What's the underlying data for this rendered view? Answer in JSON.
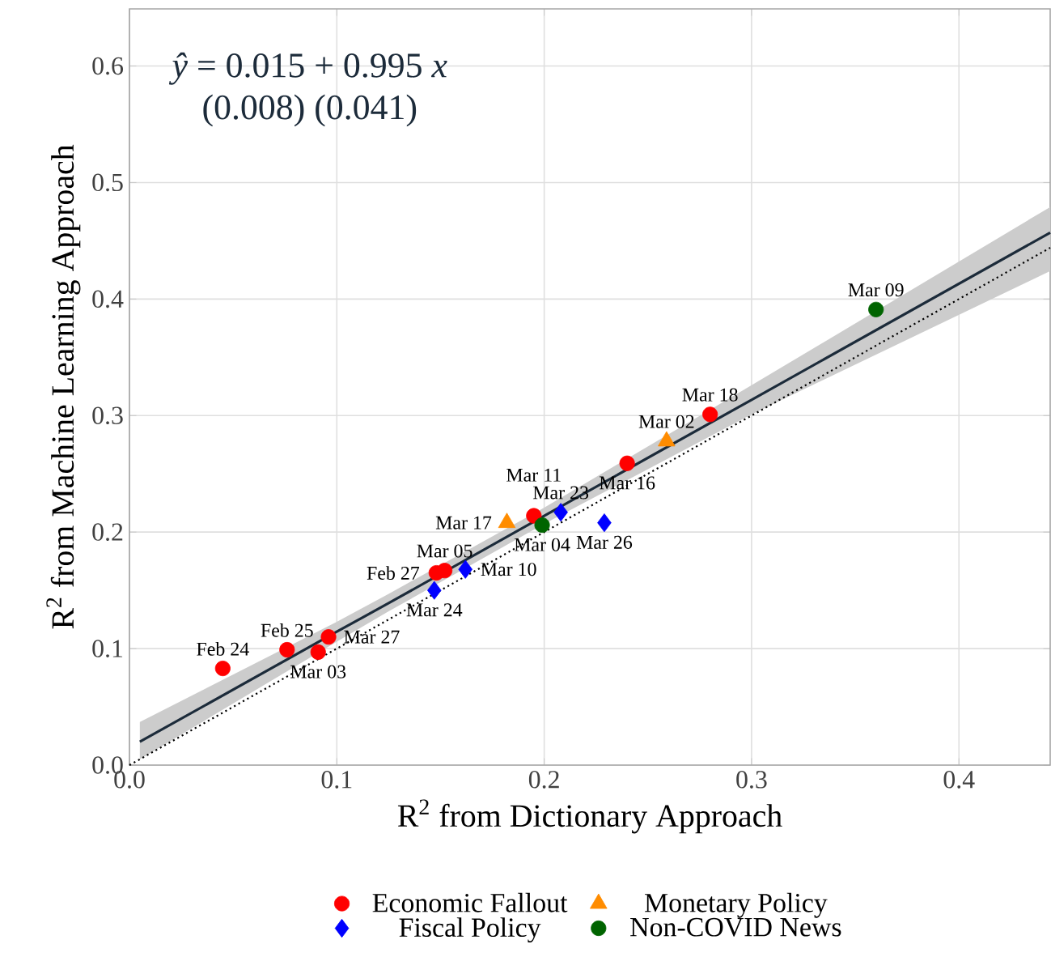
{
  "chart_data": {
    "type": "scatter",
    "xlabel": "R$^{2}$ from Dictionary Approach",
    "ylabel": "R$^{2}$ from Machine Learning Approach",
    "xlim": [
      0,
      0.444
    ],
    "ylim": [
      0,
      0.649
    ],
    "xticks": [
      {
        "value": 0,
        "label": "0.0"
      },
      0.1,
      0.2,
      0.3,
      0.4
    ],
    "yticks": [
      {
        "value": 0,
        "label": "0.0"
      },
      0.1,
      0.2,
      0.3,
      0.4,
      0.5,
      0.6
    ],
    "grid": true,
    "legend": "bottom",
    "series": [
      {
        "name": "Economic Fallout",
        "marker": "circle",
        "color": "#ff0000",
        "x": [
          0.045,
          0.076,
          0.091,
          0.096,
          0.148,
          0.152,
          0.195,
          0.24,
          0.28
        ],
        "values": [
          0.083,
          0.099,
          0.097,
          0.11,
          0.165,
          0.167,
          0.214,
          0.259,
          0.301
        ]
      },
      {
        "name": "Monetary Policy",
        "marker": "triangle",
        "color": "#ff8c00",
        "x": [
          0.182,
          0.259
        ],
        "values": [
          0.208,
          0.278
        ]
      },
      {
        "name": "Fiscal Policy",
        "marker": "diamond",
        "color": "#0000ff",
        "x": [
          0.147,
          0.162,
          0.208,
          0.229
        ],
        "values": [
          0.15,
          0.168,
          0.217,
          0.208
        ]
      },
      {
        "name": "Non-COVID News",
        "marker": "circle",
        "color": "#006400",
        "x": [
          0.199,
          0.36
        ],
        "values": [
          0.206,
          0.391
        ]
      },
      {
        "type": "line",
        "color": "#1c2b3a",
        "x": [
          0.005,
          0.1,
          0.125,
          0.2,
          0.3,
          0.444
        ],
        "values": [
          0.02,
          0.1145,
          0.139,
          0.214,
          0.3135,
          0.457
        ],
        "lower": [
          0.005,
          0.106,
          0.132,
          0.207,
          0.301,
          0.424
        ],
        "upper": [
          0.037,
          0.123,
          0.147,
          0.221,
          0.326,
          0.479
        ]
      },
      {
        "type": "line",
        "line_style": "dotted",
        "color": "#000000",
        "x": [
          0,
          0.444
        ],
        "values": [
          0,
          0.444
        ]
      }
    ],
    "annotations": [
      "*ŷ* = 0.015 + 0.995 *x*",
      "(0.008) (0.041)",
      {
        "text": "Mar 09",
        "x": 0.36,
        "y": 0.391
      },
      {
        "text": "Mar 18",
        "x": 0.28,
        "y": 0.301
      },
      {
        "text": "Mar 02",
        "x": 0.259,
        "y": 0.278
      },
      {
        "text": "Mar 16",
        "x": 0.24,
        "y": 0.259
      },
      {
        "text": "Feb 25",
        "x": 0.076,
        "y": 0.099
      },
      {
        "text": "Feb 24",
        "x": 0.045,
        "y": 0.083
      },
      {
        "text": "Mar 27",
        "x": 0.096,
        "y": 0.11
      },
      {
        "text": "Mar 03",
        "x": 0.091,
        "y": 0.097
      },
      {
        "text": "Mar 11",
        "x": 0.195,
        "y": 0.214
      },
      {
        "text": "Mar 17",
        "x": 0.182,
        "y": 0.208
      },
      {
        "text": "Mar 23",
        "x": 0.208,
        "y": 0.217
      },
      {
        "text": "Mar 26",
        "x": 0.229,
        "y": 0.208
      },
      {
        "text": "Mar 04",
        "x": 0.199,
        "y": 0.206
      },
      {
        "text": "Mar 05",
        "x": 0.152,
        "y": 0.167
      },
      {
        "text": "Feb 27",
        "x": 0.148,
        "y": 0.165
      },
      {
        "text": "Mar 10",
        "x": 0.162,
        "y": 0.168
      },
      {
        "text": "Mar 24",
        "x": 0.147,
        "y": 0.15
      }
    ]
  }
}
